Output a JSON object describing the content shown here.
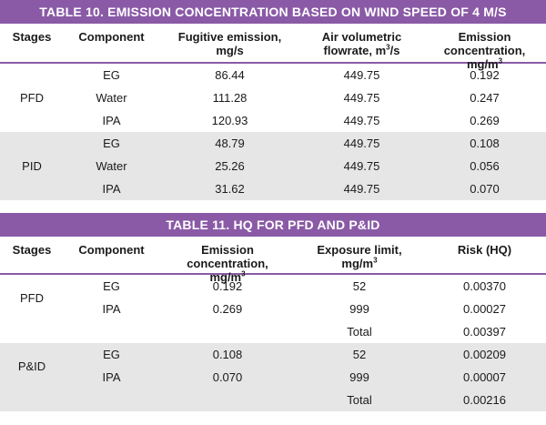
{
  "table10": {
    "title": "TABLE 10.  EMISSION CONCENTRATION BASED ON WIND SPEED OF 4 M/S",
    "headers": {
      "stages": "Stages",
      "component": "Component",
      "fugitive": "Fugitive emission, mg/s",
      "air_line1": "Air volumetric",
      "air_line2a": "flowrate, m",
      "air_sup": "3",
      "air_line2b": "/s",
      "conc_line1": "Emission concentration,",
      "conc_line2a": "mg/m",
      "conc_sup": "3"
    },
    "groups": [
      {
        "stage": "PFD",
        "rows": [
          {
            "component": "EG",
            "fugitive": "86.44",
            "air": "449.75",
            "conc": "0.192"
          },
          {
            "component": "Water",
            "fugitive": "111.28",
            "air": "449.75",
            "conc": "0.247"
          },
          {
            "component": "IPA",
            "fugitive": "120.93",
            "air": "449.75",
            "conc": "0.269"
          }
        ]
      },
      {
        "stage": "PID",
        "rows": [
          {
            "component": "EG",
            "fugitive": "48.79",
            "air": "449.75",
            "conc": "0.108"
          },
          {
            "component": "Water",
            "fugitive": "25.26",
            "air": "449.75",
            "conc": "0.056"
          },
          {
            "component": "IPA",
            "fugitive": "31.62",
            "air": "449.75",
            "conc": "0.070"
          }
        ]
      }
    ]
  },
  "table11": {
    "title": "TABLE 11.  HQ FOR PFD AND P&ID",
    "headers": {
      "stages": "Stages",
      "component": "Component",
      "conc_line1": "Emission concentration,",
      "conc_line2a": "mg/m",
      "conc_sup": "3",
      "exp_line1": "Exposure limit,",
      "exp_line2a": "mg/m",
      "exp_sup": "3",
      "risk": "Risk (HQ)"
    },
    "groups": [
      {
        "stage": "PFD",
        "rows": [
          {
            "component": "EG",
            "conc": "0.192",
            "limit": "52",
            "risk": "0.00370"
          },
          {
            "component": "IPA",
            "conc": "0.269",
            "limit": "999",
            "risk": "0.00027"
          },
          {
            "component": "",
            "conc": "",
            "limit": "Total",
            "risk": "0.00397"
          }
        ]
      },
      {
        "stage": "P&ID",
        "rows": [
          {
            "component": "EG",
            "conc": "0.108",
            "limit": "52",
            "risk": "0.00209"
          },
          {
            "component": "IPA",
            "conc": "0.070",
            "limit": "999",
            "risk": "0.00007"
          },
          {
            "component": "",
            "conc": "",
            "limit": "Total",
            "risk": "0.00216"
          }
        ]
      }
    ]
  },
  "colors": {
    "title_bar": "#8a5aa6",
    "row_shade": "#e6e6e6"
  }
}
